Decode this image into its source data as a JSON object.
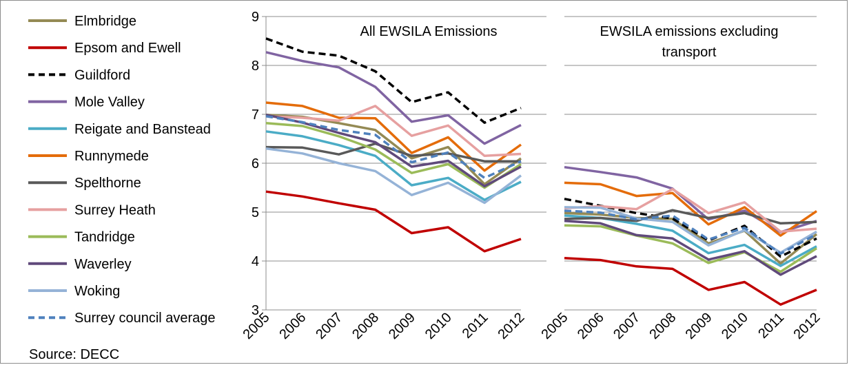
{
  "source_label": "Source: DECC",
  "chart_data": {
    "type": "line",
    "x": [
      "2005",
      "2006",
      "2007",
      "2008",
      "2009",
      "2010",
      "2011",
      "2012"
    ],
    "ylim": [
      3,
      9
    ],
    "yticks": [
      3,
      4,
      5,
      6,
      7,
      8,
      9
    ],
    "grid": true,
    "legend_position": "left",
    "panels": [
      {
        "title_lines": [
          "All EWSILA Emissions"
        ]
      },
      {
        "title_lines": [
          "EWSILA emissions excluding",
          "transport"
        ]
      }
    ],
    "series": [
      {
        "name": "Elmbridge",
        "color": "#948a54",
        "dashed": false,
        "values": [
          [
            6.99,
            6.95,
            6.82,
            6.68,
            6.1,
            6.33,
            5.57,
            6.1
          ],
          [
            4.98,
            4.95,
            4.88,
            4.86,
            4.36,
            4.62,
            3.95,
            4.55
          ]
        ]
      },
      {
        "name": "Epsom and Ewell",
        "color": "#c00000",
        "dashed": false,
        "values": [
          [
            5.42,
            5.32,
            5.18,
            5.05,
            4.57,
            4.69,
            4.2,
            4.45
          ],
          [
            4.06,
            4.02,
            3.89,
            3.84,
            3.41,
            3.57,
            3.11,
            3.41
          ]
        ]
      },
      {
        "name": "Guildford",
        "color": "#000000",
        "dashed": true,
        "values": [
          [
            8.55,
            8.28,
            8.2,
            7.88,
            7.25,
            7.45,
            6.83,
            7.13
          ],
          [
            5.27,
            5.13,
            4.98,
            4.87,
            4.42,
            4.72,
            4.09,
            4.46
          ]
        ]
      },
      {
        "name": "Mole Valley",
        "color": "#8064a2",
        "dashed": false,
        "values": [
          [
            8.27,
            8.09,
            7.96,
            7.56,
            6.85,
            6.98,
            6.4,
            6.78
          ],
          [
            5.92,
            5.82,
            5.71,
            5.48,
            4.85,
            5.03,
            4.59,
            4.82
          ]
        ]
      },
      {
        "name": "Reigate and Banstead",
        "color": "#4bacc6",
        "dashed": false,
        "values": [
          [
            6.65,
            6.55,
            6.37,
            6.15,
            5.55,
            5.7,
            5.25,
            5.62
          ],
          [
            4.93,
            4.88,
            4.76,
            4.62,
            4.16,
            4.33,
            3.9,
            4.3
          ]
        ]
      },
      {
        "name": "Runnymede",
        "color": "#e46c0a",
        "dashed": false,
        "values": [
          [
            7.24,
            7.17,
            6.93,
            6.92,
            6.21,
            6.53,
            5.85,
            6.38
          ],
          [
            5.6,
            5.57,
            5.33,
            5.39,
            4.75,
            5.1,
            4.52,
            5.02
          ]
        ]
      },
      {
        "name": "Spelthorne",
        "color": "#595959",
        "dashed": false,
        "values": [
          [
            6.33,
            6.32,
            6.18,
            6.4,
            6.15,
            6.2,
            6.04,
            6.04
          ],
          [
            4.86,
            4.88,
            4.82,
            5.04,
            4.88,
            4.98,
            4.77,
            4.8
          ]
        ]
      },
      {
        "name": "Surrey Heath",
        "color": "#e6a0a0",
        "dashed": false,
        "values": [
          [
            6.96,
            6.93,
            6.87,
            7.17,
            6.56,
            6.77,
            6.15,
            6.19
          ],
          [
            5.08,
            5.12,
            5.06,
            5.47,
            4.98,
            5.2,
            4.6,
            4.66
          ]
        ]
      },
      {
        "name": "Tandridge",
        "color": "#9bbb59",
        "dashed": false,
        "values": [
          [
            6.82,
            6.76,
            6.55,
            6.28,
            5.8,
            5.98,
            5.5,
            5.98
          ],
          [
            4.73,
            4.71,
            4.52,
            4.36,
            3.96,
            4.18,
            3.78,
            4.26
          ]
        ]
      },
      {
        "name": "Waverley",
        "color": "#604a7b",
        "dashed": false,
        "values": [
          [
            6.99,
            6.83,
            6.62,
            6.43,
            5.93,
            6.05,
            5.53,
            5.93
          ],
          [
            4.82,
            4.77,
            4.53,
            4.46,
            4.03,
            4.2,
            3.72,
            4.1
          ]
        ]
      },
      {
        "name": "Woking",
        "color": "#95b3d7",
        "dashed": false,
        "values": [
          [
            6.3,
            6.2,
            6.0,
            5.84,
            5.35,
            5.6,
            5.19,
            5.75
          ],
          [
            5.1,
            5.09,
            4.87,
            4.8,
            4.32,
            4.63,
            4.17,
            4.6
          ]
        ]
      },
      {
        "name": "Surrey council average",
        "color": "#4f81bd",
        "dashed": true,
        "values": [
          [
            6.96,
            6.84,
            6.68,
            6.58,
            6.02,
            6.22,
            5.7,
            6.04
          ],
          [
            5.03,
            4.99,
            4.85,
            4.93,
            4.44,
            4.68,
            4.15,
            4.55
          ]
        ]
      }
    ]
  }
}
